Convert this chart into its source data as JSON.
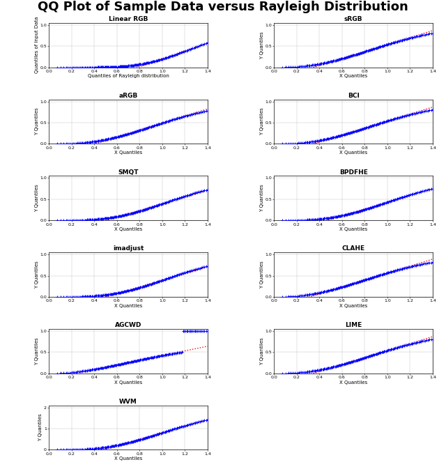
{
  "title": "QQ Plot of Sample Data versus Rayleigh Distribution",
  "subplots": [
    {
      "title": "Linear RGB",
      "ylabel": "Quantiles of Input Data",
      "xlabel": "Quantiles of Rayleigh distribution",
      "row": 0,
      "col": 0,
      "x_ticks": [
        0,
        0.2,
        0.4,
        0.6,
        0.8,
        1.0,
        1.2,
        1.4
      ],
      "y_ticks": [
        0,
        0.5,
        1
      ],
      "xlim": [
        0,
        1.4
      ],
      "ylim": [
        0,
        1.05
      ],
      "curve": "linear_rgb"
    },
    {
      "title": "sRGB",
      "ylabel": "Y Quantiles",
      "xlabel": "X Quantiles",
      "row": 0,
      "col": 1,
      "x_ticks": [
        0,
        0.2,
        0.4,
        0.6,
        0.8,
        1.0,
        1.2,
        1.4
      ],
      "y_ticks": [
        0,
        0.5,
        1
      ],
      "xlim": [
        0,
        1.4
      ],
      "ylim": [
        0,
        1.05
      ],
      "curve": "srgb"
    },
    {
      "title": "aRGB",
      "ylabel": "Y Quantiles",
      "xlabel": "X Quantiles",
      "row": 1,
      "col": 0,
      "x_ticks": [
        0,
        0.2,
        0.4,
        0.6,
        0.8,
        1.0,
        1.2,
        1.4
      ],
      "y_ticks": [
        0,
        0.5,
        1
      ],
      "xlim": [
        0,
        1.4
      ],
      "ylim": [
        0,
        1.05
      ],
      "curve": "argb"
    },
    {
      "title": "BCI",
      "ylabel": "Y Quantiles",
      "xlabel": "X Quantiles",
      "row": 1,
      "col": 1,
      "x_ticks": [
        0,
        0.2,
        0.4,
        0.6,
        0.8,
        1.0,
        1.2,
        1.4
      ],
      "y_ticks": [
        0,
        0.5,
        1
      ],
      "xlim": [
        0,
        1.4
      ],
      "ylim": [
        0,
        1.05
      ],
      "curve": "bci"
    },
    {
      "title": "SMQT",
      "ylabel": "Y Quantiles",
      "xlabel": "X Quantiles",
      "row": 2,
      "col": 0,
      "x_ticks": [
        0,
        0.2,
        0.4,
        0.6,
        0.8,
        1.0,
        1.2,
        1.4
      ],
      "y_ticks": [
        0,
        0.5,
        1
      ],
      "xlim": [
        0,
        1.4
      ],
      "ylim": [
        0,
        1.05
      ],
      "curve": "smqt"
    },
    {
      "title": "BPDFHE",
      "ylabel": "Y Quantiles",
      "xlabel": "X Quantiles",
      "row": 2,
      "col": 1,
      "x_ticks": [
        0,
        0.2,
        0.4,
        0.6,
        0.8,
        1.0,
        1.2,
        1.4
      ],
      "y_ticks": [
        0,
        0.5,
        1
      ],
      "xlim": [
        0,
        1.4
      ],
      "ylim": [
        0,
        1.05
      ],
      "curve": "bpdfhe"
    },
    {
      "title": "imadjust",
      "ylabel": "Y Quantiles",
      "xlabel": "X Quantiles",
      "row": 3,
      "col": 0,
      "x_ticks": [
        0,
        0.2,
        0.4,
        0.6,
        0.8,
        1.0,
        1.2,
        1.4
      ],
      "y_ticks": [
        0,
        0.5,
        1
      ],
      "xlim": [
        0,
        1.4
      ],
      "ylim": [
        0,
        1.05
      ],
      "curve": "imadjust"
    },
    {
      "title": "CLAHE",
      "ylabel": "Y Quantiles",
      "xlabel": "X Quantiles",
      "row": 3,
      "col": 1,
      "x_ticks": [
        0,
        0.2,
        0.4,
        0.6,
        0.8,
        1.0,
        1.2,
        1.4
      ],
      "y_ticks": [
        0,
        0.5,
        1
      ],
      "xlim": [
        0,
        1.4
      ],
      "ylim": [
        0,
        1.05
      ],
      "curve": "clahe"
    },
    {
      "title": "AGCWD",
      "ylabel": "Y Quantiles",
      "xlabel": "X Quantiles",
      "row": 4,
      "col": 0,
      "x_ticks": [
        0,
        0.2,
        0.4,
        0.6,
        0.8,
        1.0,
        1.2,
        1.4
      ],
      "y_ticks": [
        0,
        0.5,
        1
      ],
      "xlim": [
        0,
        1.4
      ],
      "ylim": [
        0,
        1.05
      ],
      "curve": "agcwd"
    },
    {
      "title": "LIME",
      "ylabel": "Y Quantiles",
      "xlabel": "X Quantiles",
      "row": 4,
      "col": 1,
      "x_ticks": [
        0,
        0.2,
        0.4,
        0.6,
        0.8,
        1.0,
        1.2,
        1.4
      ],
      "y_ticks": [
        0,
        0.5,
        1
      ],
      "xlim": [
        0,
        1.4
      ],
      "ylim": [
        0,
        1.05
      ],
      "curve": "lime"
    },
    {
      "title": "WVM",
      "ylabel": "Y Quantiles",
      "xlabel": "X Quantiles",
      "row": 5,
      "col": 0,
      "x_ticks": [
        0,
        0.2,
        0.4,
        0.6,
        0.8,
        1.0,
        1.2,
        1.4
      ],
      "y_ticks": [
        0,
        1,
        2
      ],
      "xlim": [
        0,
        1.4
      ],
      "ylim": [
        0,
        2.1
      ],
      "curve": "wvm"
    }
  ],
  "dot_color": "#0000FF",
  "line_color": "#FF0000",
  "title_fontsize": 13,
  "title_fontweight": "bold"
}
